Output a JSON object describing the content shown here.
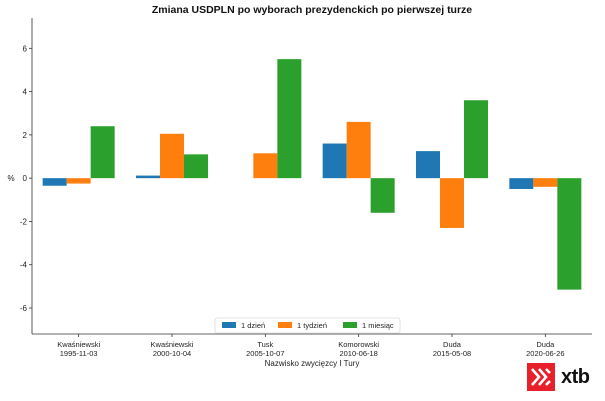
{
  "chart_data": {
    "type": "bar",
    "title": "Zmiana USDPLN po wyborach prezydenckich po pierwszej turze",
    "xlabel": "Nazwisko zwycięzcy I Tury",
    "ylabel": "%",
    "ylim": [
      -7.2,
      7.4
    ],
    "yticks": [
      -6,
      -4,
      -2,
      0,
      2,
      4,
      6
    ],
    "grid": false,
    "legend_position": "bottom-center",
    "categories": [
      {
        "name": "Kwaśniewski",
        "date": "1995-11-03"
      },
      {
        "name": "Kwaśniewski",
        "date": "2000-10-04"
      },
      {
        "name": "Tusk",
        "date": "2005-10-07"
      },
      {
        "name": "Komorowski",
        "date": "2010-06-18"
      },
      {
        "name": "Duda",
        "date": "2015-05-08"
      },
      {
        "name": "Duda",
        "date": "2020-06-26"
      }
    ],
    "series": [
      {
        "name": "1 dzień",
        "color": "#1f77b4",
        "values": [
          -0.35,
          0.12,
          0.0,
          1.6,
          1.25,
          -0.5
        ]
      },
      {
        "name": "1 tydzień",
        "color": "#ff7f0e",
        "values": [
          -0.25,
          2.05,
          1.15,
          2.6,
          -2.3,
          -0.4
        ]
      },
      {
        "name": "1 miesiąc",
        "color": "#2ca02c",
        "values": [
          2.4,
          1.1,
          5.5,
          -1.6,
          3.6,
          -5.15
        ]
      }
    ]
  },
  "logo": {
    "text": "xtb",
    "color": "#e8202a"
  }
}
